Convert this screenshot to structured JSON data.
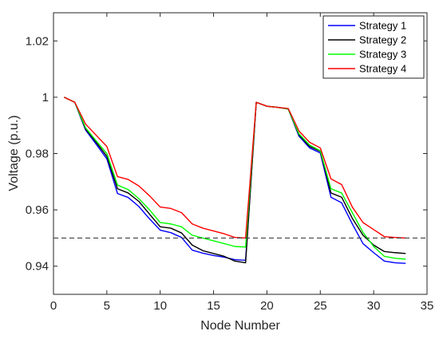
{
  "chart_data": {
    "type": "line",
    "title": "",
    "xlabel": "Node Number",
    "ylabel": "Voltage (p.u.)",
    "xlim": [
      0,
      35
    ],
    "ylim": [
      0.93,
      1.03
    ],
    "xticks": [
      0,
      5,
      10,
      15,
      20,
      25,
      30,
      35
    ],
    "yticks": [
      0.94,
      0.96,
      0.98,
      1,
      1.02
    ],
    "xtick_labels": [
      "0",
      "5",
      "10",
      "15",
      "20",
      "25",
      "30",
      "35"
    ],
    "ytick_labels": [
      "0.94",
      "0.96",
      "0.98",
      "1",
      "1.02"
    ],
    "grid": false,
    "legend_position": "top-right",
    "x": [
      1,
      2,
      3,
      4,
      5,
      6,
      7,
      8,
      9,
      10,
      11,
      12,
      13,
      14,
      15,
      16,
      17,
      18,
      19,
      20,
      21,
      22,
      23,
      24,
      25,
      26,
      27,
      28,
      29,
      30,
      31,
      32,
      33
    ],
    "series": [
      {
        "name": "Strategy 1",
        "color": "#0000ff",
        "values": [
          1.0,
          0.9982,
          0.9884,
          0.9833,
          0.9781,
          0.9658,
          0.9644,
          0.9612,
          0.9568,
          0.9528,
          0.9519,
          0.9502,
          0.9457,
          0.9446,
          0.9438,
          0.9432,
          0.9423,
          0.9421,
          0.9982,
          0.9968,
          0.9964,
          0.9958,
          0.9862,
          0.982,
          0.9802,
          0.9645,
          0.9625,
          0.955,
          0.948,
          0.9448,
          0.9418,
          0.9412,
          0.941
        ]
      },
      {
        "name": "Strategy 2",
        "color": "#000000",
        "values": [
          1.0,
          0.9982,
          0.9888,
          0.984,
          0.979,
          0.9675,
          0.966,
          0.963,
          0.9585,
          0.954,
          0.9535,
          0.9518,
          0.9475,
          0.9455,
          0.9445,
          0.9435,
          0.9418,
          0.9412,
          0.9982,
          0.9968,
          0.9964,
          0.9958,
          0.9866,
          0.9825,
          0.9808,
          0.966,
          0.9645,
          0.957,
          0.951,
          0.9475,
          0.9452,
          0.9448,
          0.9445
        ]
      },
      {
        "name": "Strategy 3",
        "color": "#00ff00",
        "values": [
          1.0,
          0.9982,
          0.9892,
          0.9845,
          0.98,
          0.9688,
          0.9672,
          0.964,
          0.96,
          0.9555,
          0.955,
          0.954,
          0.951,
          0.95,
          0.949,
          0.948,
          0.947,
          0.9468,
          0.9982,
          0.9968,
          0.9964,
          0.9958,
          0.987,
          0.983,
          0.981,
          0.9675,
          0.966,
          0.959,
          0.952,
          0.947,
          0.9435,
          0.9428,
          0.9425
        ]
      },
      {
        "name": "Strategy 4",
        "color": "#ff0000",
        "values": [
          1.0,
          0.9982,
          0.9905,
          0.9865,
          0.9825,
          0.9718,
          0.9708,
          0.9685,
          0.965,
          0.961,
          0.9605,
          0.959,
          0.955,
          0.9535,
          0.9525,
          0.9515,
          0.9502,
          0.95,
          0.9982,
          0.9968,
          0.9964,
          0.996,
          0.988,
          0.984,
          0.982,
          0.971,
          0.969,
          0.961,
          0.9555,
          0.953,
          0.9505,
          0.9502,
          0.95
        ]
      }
    ],
    "reference_line": {
      "y": 0.95,
      "style": "dashed",
      "color": "#404040"
    }
  }
}
